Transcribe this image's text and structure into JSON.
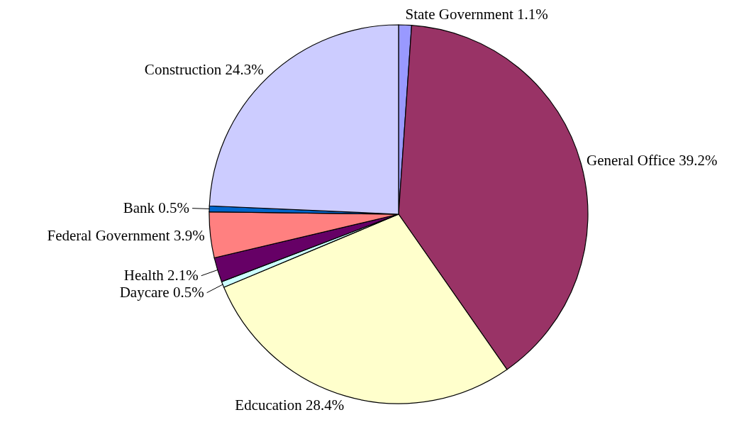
{
  "chart_data": {
    "type": "pie",
    "categories": [
      "State Government",
      "General Office",
      "Edcucation",
      "Daycare",
      "Health",
      "Federal Government",
      "Bank",
      "Construction"
    ],
    "values": [
      1.1,
      39.2,
      28.4,
      0.5,
      2.1,
      3.9,
      0.5,
      24.3
    ],
    "value_labels": [
      "1.1%",
      "39.2%",
      "28.4%",
      "0.5%",
      "2.1%",
      "3.9%",
      "0.5%",
      "24.3%"
    ],
    "colors": [
      "#9999ff",
      "#993366",
      "#ffffcc",
      "#ccffff",
      "#660066",
      "#ff8080",
      "#0066cc",
      "#ccccff"
    ]
  }
}
